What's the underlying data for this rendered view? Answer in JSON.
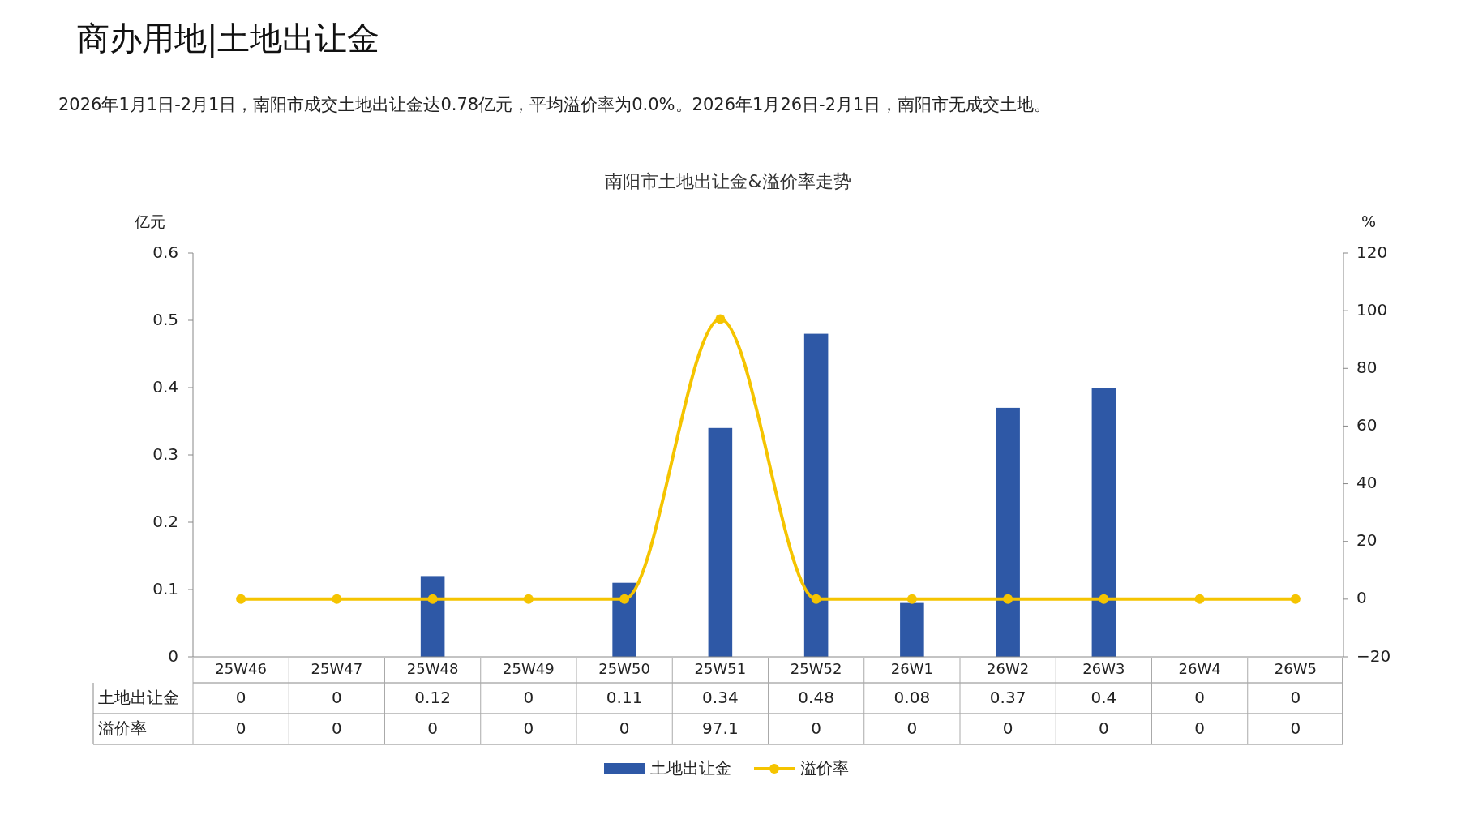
{
  "chart_data": {
    "type": "bar",
    "title": "商办用地|土地出让金",
    "subtitle": "2026年1月1日-2月1日，南阳市成交土地出让金达0.78亿元，平均溢价率为0.0%。2026年1月26日-2月1日，南阳市无成交土地。",
    "annotations": [
      "南阳市土地出让金&溢价率走势"
    ],
    "categories": [
      "25W46",
      "25W47",
      "25W48",
      "25W49",
      "25W50",
      "25W51",
      "25W52",
      "26W1",
      "26W2",
      "26W3",
      "26W4",
      "26W5"
    ],
    "series": [
      {
        "name": "土地出让金",
        "color": "#2e58a6",
        "values": [
          0,
          0,
          0.12,
          0,
          0.11,
          0.34,
          0.48,
          0.08,
          0.37,
          0.4,
          0,
          0
        ]
      },
      {
        "name": "溢价率",
        "type": "line",
        "axis": "y2",
        "color": "#f5c400",
        "marker": "circle",
        "values": [
          0,
          0,
          0,
          0,
          0,
          97.1,
          0,
          0,
          0,
          0,
          0,
          0
        ]
      }
    ],
    "ylabel": "亿元",
    "y2label": "%",
    "ylim": [
      0,
      0.6
    ],
    "yticks": [
      0,
      0.1,
      0.2,
      0.3,
      0.4,
      0.5,
      0.6
    ],
    "y2lim": [
      -20,
      120
    ],
    "y2ticks": [
      -20,
      0,
      20,
      40,
      60,
      80,
      100,
      120
    ],
    "data_labels": true,
    "legend": "bottom",
    "grid": false
  }
}
